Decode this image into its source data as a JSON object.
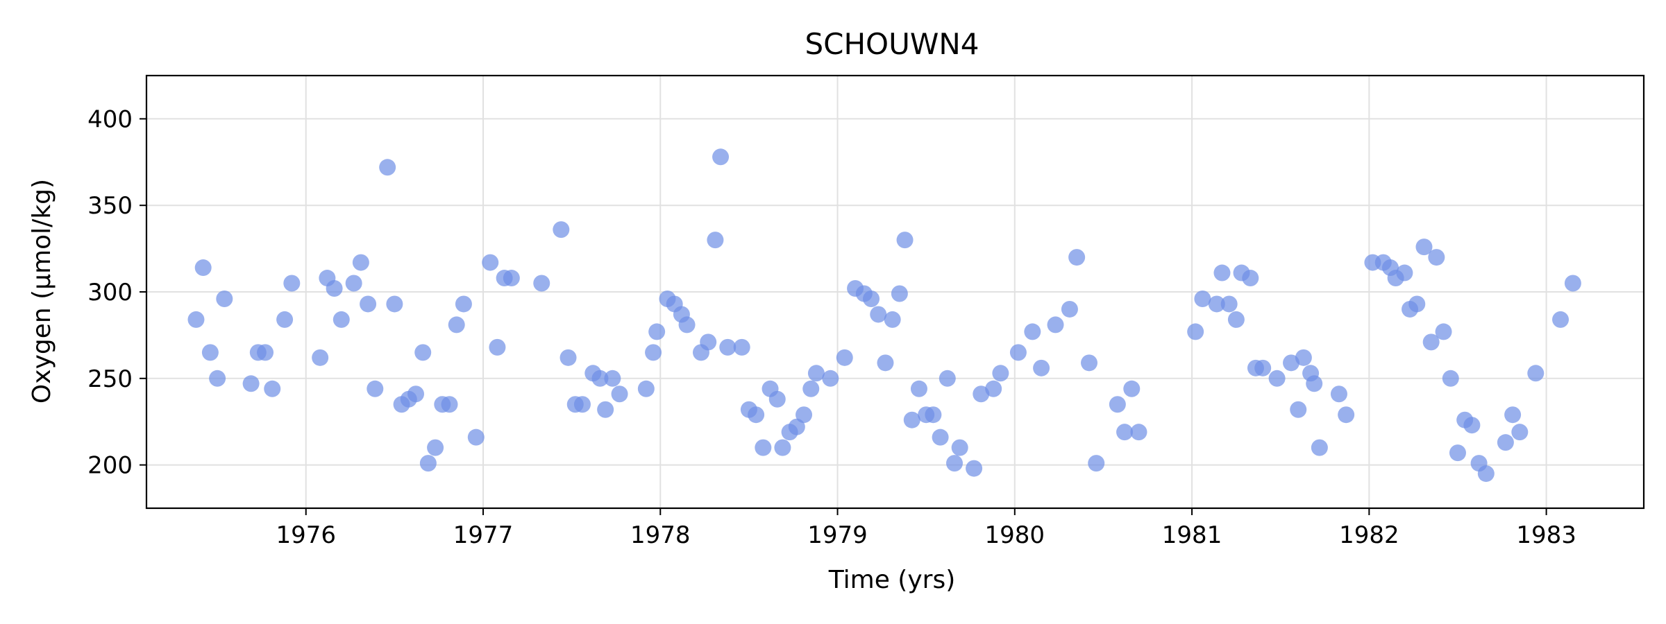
{
  "chart_data": {
    "type": "scatter",
    "title": "SCHOUWN4",
    "xlabel": "Time (yrs)",
    "ylabel": "Oxygen (µmol/kg)",
    "xlim": [
      1975.1,
      1983.55
    ],
    "ylim": [
      175,
      425
    ],
    "xticks": [
      1976,
      1977,
      1978,
      1979,
      1980,
      1981,
      1982,
      1983
    ],
    "yticks": [
      200,
      250,
      300,
      350,
      400
    ],
    "grid": true,
    "marker_color": "#6d8ee6",
    "marker_opacity": 0.7,
    "series": [
      {
        "points": [
          [
            1975.38,
            284
          ],
          [
            1975.42,
            314
          ],
          [
            1975.46,
            265
          ],
          [
            1975.5,
            250
          ],
          [
            1975.54,
            296
          ],
          [
            1975.69,
            247
          ],
          [
            1975.73,
            265
          ],
          [
            1975.77,
            265
          ],
          [
            1975.81,
            244
          ],
          [
            1975.88,
            284
          ],
          [
            1975.92,
            305
          ],
          [
            1976.08,
            262
          ],
          [
            1976.12,
            308
          ],
          [
            1976.16,
            302
          ],
          [
            1976.2,
            284
          ],
          [
            1976.27,
            305
          ],
          [
            1976.31,
            317
          ],
          [
            1976.35,
            293
          ],
          [
            1976.39,
            244
          ],
          [
            1976.46,
            372
          ],
          [
            1976.5,
            293
          ],
          [
            1976.54,
            235
          ],
          [
            1976.58,
            238
          ],
          [
            1976.62,
            241
          ],
          [
            1976.66,
            265
          ],
          [
            1976.69,
            201
          ],
          [
            1976.73,
            210
          ],
          [
            1976.77,
            235
          ],
          [
            1976.81,
            235
          ],
          [
            1976.85,
            281
          ],
          [
            1976.89,
            293
          ],
          [
            1976.96,
            216
          ],
          [
            1977.04,
            317
          ],
          [
            1977.08,
            268
          ],
          [
            1977.12,
            308
          ],
          [
            1977.16,
            308
          ],
          [
            1977.33,
            305
          ],
          [
            1977.44,
            336
          ],
          [
            1977.48,
            262
          ],
          [
            1977.52,
            235
          ],
          [
            1977.56,
            235
          ],
          [
            1977.62,
            253
          ],
          [
            1977.66,
            250
          ],
          [
            1977.69,
            232
          ],
          [
            1977.73,
            250
          ],
          [
            1977.77,
            241
          ],
          [
            1977.92,
            244
          ],
          [
            1977.96,
            265
          ],
          [
            1977.98,
            277
          ],
          [
            1978.04,
            296
          ],
          [
            1978.08,
            293
          ],
          [
            1978.12,
            287
          ],
          [
            1978.15,
            281
          ],
          [
            1978.23,
            265
          ],
          [
            1978.27,
            271
          ],
          [
            1978.31,
            330
          ],
          [
            1978.34,
            378
          ],
          [
            1978.38,
            268
          ],
          [
            1978.46,
            268
          ],
          [
            1978.5,
            232
          ],
          [
            1978.54,
            229
          ],
          [
            1978.58,
            210
          ],
          [
            1978.62,
            244
          ],
          [
            1978.66,
            238
          ],
          [
            1978.69,
            210
          ],
          [
            1978.73,
            219
          ],
          [
            1978.77,
            222
          ],
          [
            1978.81,
            229
          ],
          [
            1978.85,
            244
          ],
          [
            1978.88,
            253
          ],
          [
            1978.96,
            250
          ],
          [
            1979.04,
            262
          ],
          [
            1979.1,
            302
          ],
          [
            1979.15,
            299
          ],
          [
            1979.19,
            296
          ],
          [
            1979.23,
            287
          ],
          [
            1979.27,
            259
          ],
          [
            1979.31,
            284
          ],
          [
            1979.35,
            299
          ],
          [
            1979.38,
            330
          ],
          [
            1979.42,
            226
          ],
          [
            1979.46,
            244
          ],
          [
            1979.5,
            229
          ],
          [
            1979.54,
            229
          ],
          [
            1979.58,
            216
          ],
          [
            1979.62,
            250
          ],
          [
            1979.66,
            201
          ],
          [
            1979.69,
            210
          ],
          [
            1979.77,
            198
          ],
          [
            1979.81,
            241
          ],
          [
            1979.88,
            244
          ],
          [
            1979.92,
            253
          ],
          [
            1980.02,
            265
          ],
          [
            1980.1,
            277
          ],
          [
            1980.15,
            256
          ],
          [
            1980.23,
            281
          ],
          [
            1980.31,
            290
          ],
          [
            1980.35,
            320
          ],
          [
            1980.42,
            259
          ],
          [
            1980.46,
            201
          ],
          [
            1980.58,
            235
          ],
          [
            1980.62,
            219
          ],
          [
            1980.66,
            244
          ],
          [
            1980.7,
            219
          ],
          [
            1981.02,
            277
          ],
          [
            1981.06,
            296
          ],
          [
            1981.14,
            293
          ],
          [
            1981.17,
            311
          ],
          [
            1981.21,
            293
          ],
          [
            1981.25,
            284
          ],
          [
            1981.28,
            311
          ],
          [
            1981.33,
            308
          ],
          [
            1981.36,
            256
          ],
          [
            1981.4,
            256
          ],
          [
            1981.48,
            250
          ],
          [
            1981.56,
            259
          ],
          [
            1981.6,
            232
          ],
          [
            1981.63,
            262
          ],
          [
            1981.67,
            253
          ],
          [
            1981.69,
            247
          ],
          [
            1981.72,
            210
          ],
          [
            1981.83,
            241
          ],
          [
            1981.87,
            229
          ],
          [
            1982.02,
            317
          ],
          [
            1982.08,
            317
          ],
          [
            1982.12,
            314
          ],
          [
            1982.15,
            308
          ],
          [
            1982.2,
            311
          ],
          [
            1982.23,
            290
          ],
          [
            1982.27,
            293
          ],
          [
            1982.31,
            326
          ],
          [
            1982.35,
            271
          ],
          [
            1982.38,
            320
          ],
          [
            1982.42,
            277
          ],
          [
            1982.46,
            250
          ],
          [
            1982.5,
            207
          ],
          [
            1982.54,
            226
          ],
          [
            1982.58,
            223
          ],
          [
            1982.62,
            201
          ],
          [
            1982.66,
            195
          ],
          [
            1982.77,
            213
          ],
          [
            1982.81,
            229
          ],
          [
            1982.85,
            219
          ],
          [
            1982.94,
            253
          ],
          [
            1983.08,
            284
          ],
          [
            1983.15,
            305
          ]
        ]
      }
    ]
  }
}
